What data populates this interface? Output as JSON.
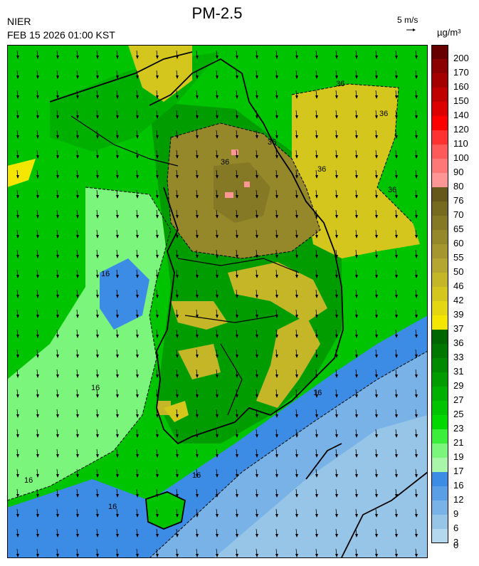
{
  "header": {
    "agency": "NIER",
    "datetime": "FEB 15 2026 01:00 KST",
    "title": "PM-2.5",
    "wind_reference": "5 m/s",
    "unit": "µg/m³"
  },
  "legend": {
    "levels": [
      {
        "label": "200",
        "color": "#660000"
      },
      {
        "label": "170",
        "color": "#8b0000"
      },
      {
        "label": "160",
        "color": "#a50000"
      },
      {
        "label": "150",
        "color": "#c00000"
      },
      {
        "label": "140",
        "color": "#dc0000"
      },
      {
        "label": "120",
        "color": "#ff0000"
      },
      {
        "label": "110",
        "color": "#ff3232"
      },
      {
        "label": "100",
        "color": "#ff5a5a"
      },
      {
        "label": "90",
        "color": "#ff7878"
      },
      {
        "label": "80",
        "color": "#ff9696"
      },
      {
        "label": "76",
        "color": "#66581a"
      },
      {
        "label": "70",
        "color": "#756a20"
      },
      {
        "label": "65",
        "color": "#857926"
      },
      {
        "label": "60",
        "color": "#95882a"
      },
      {
        "label": "55",
        "color": "#a59630"
      },
      {
        "label": "50",
        "color": "#b5a632"
      },
      {
        "label": "46",
        "color": "#c5b628"
      },
      {
        "label": "42",
        "color": "#d5c61e"
      },
      {
        "label": "39",
        "color": "#e5d612"
      },
      {
        "label": "37",
        "color": "#f5e600"
      },
      {
        "label": "36",
        "color": "#006600"
      },
      {
        "label": "33",
        "color": "#007800"
      },
      {
        "label": "31",
        "color": "#008a00"
      },
      {
        "label": "29",
        "color": "#009c00"
      },
      {
        "label": "27",
        "color": "#00b000"
      },
      {
        "label": "25",
        "color": "#00c400"
      },
      {
        "label": "23",
        "color": "#00d800"
      },
      {
        "label": "21",
        "color": "#3cee3c"
      },
      {
        "label": "19",
        "color": "#7cf57c"
      },
      {
        "label": "17",
        "color": "#a9f5a9"
      },
      {
        "label": "16",
        "color": "#3c8ce6"
      },
      {
        "label": "12",
        "color": "#5a9fe6"
      },
      {
        "label": "9",
        "color": "#78b2e6"
      },
      {
        "label": "6",
        "color": "#96c5e8"
      },
      {
        "label": "3",
        "color": "#b4d8ee"
      }
    ],
    "bottom_label": "0"
  },
  "contour_labels": [
    "36",
    "36",
    "36",
    "36",
    "36",
    "36",
    "16",
    "16",
    "16",
    "16",
    "16",
    "16"
  ]
}
